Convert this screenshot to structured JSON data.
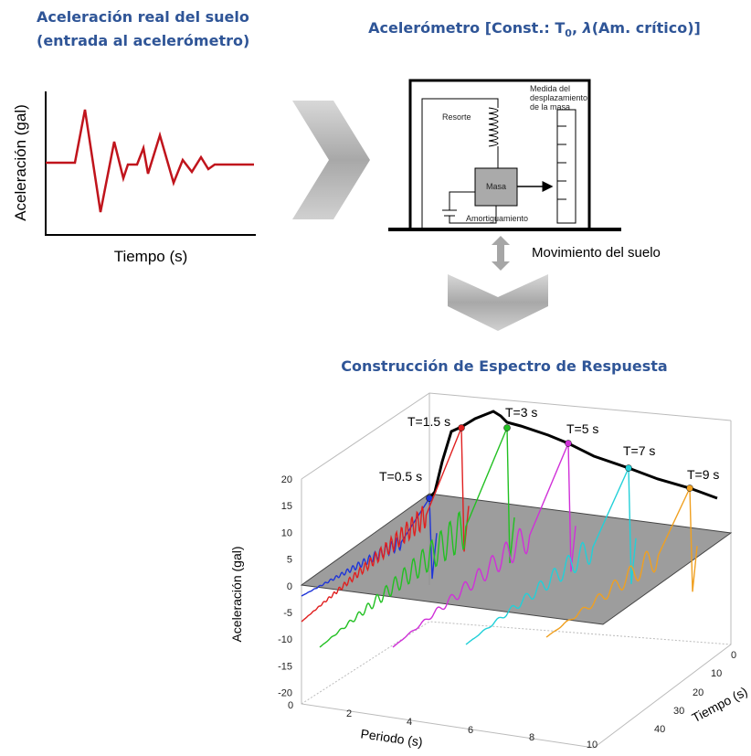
{
  "left_panel": {
    "title": [
      "Aceleración real del suelo",
      "(entrada al acelerómetro)"
    ],
    "y_label": "Aceleración (gal)",
    "x_label": "Tiempo (s)"
  },
  "accelerometer": {
    "title": {
      "prefix": "Acelerómetro [Const.: T",
      "subscript": "0",
      "separator": ", ",
      "symbol": "λ",
      "suffix": "(Am. crítico)]"
    },
    "labels": {
      "measure": [
        "Medida del",
        "desplazamiento",
        "de la masa"
      ],
      "spring": "Resorte",
      "mass": "Masa",
      "damper": "Amortiguamiento"
    },
    "ground_motion": "Movimiento del suelo"
  },
  "spectrum": {
    "title": "Construcción de Espectro de Respuesta",
    "z_label": "Aceleración (gal)",
    "x_label": "Periodo (s)",
    "y_label": "Tiempo (s)",
    "z_ticks": [
      20,
      15,
      10,
      5,
      0,
      -5,
      -10,
      -15,
      -20
    ],
    "period_ticks": [
      0,
      2,
      4,
      6,
      8,
      10
    ],
    "time_ticks": [
      0,
      10,
      20,
      30,
      40
    ],
    "oscillators": [
      {
        "label": "T=0.5 s",
        "color": "#1f35d8"
      },
      {
        "label": "T=1.5 s",
        "color": "#e02020"
      },
      {
        "label": "T=3 s",
        "color": "#22c022"
      },
      {
        "label": "T=5 s",
        "color": "#d030d8"
      },
      {
        "label": "T=7 s",
        "color": "#22d0d8"
      },
      {
        "label": "T=9 s",
        "color": "#f0a020"
      }
    ]
  }
}
